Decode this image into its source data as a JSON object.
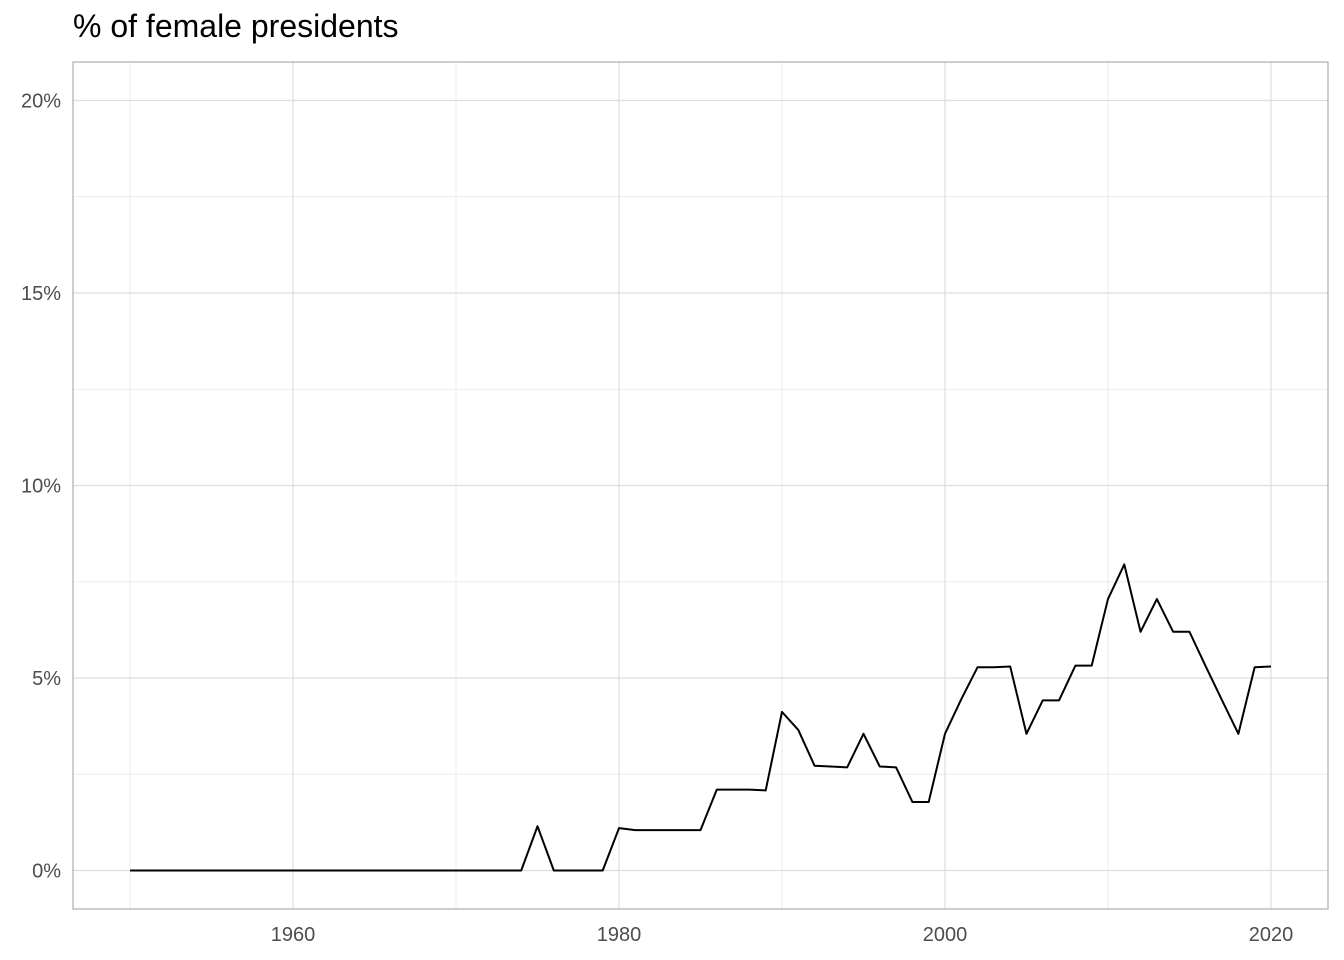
{
  "chart_data": {
    "type": "line",
    "title": "% of female presidents",
    "xlabel": "",
    "ylabel": "",
    "xlim": [
      1946.5,
      2023.5
    ],
    "ylim": [
      -1,
      21
    ],
    "x_ticks": [
      1960,
      1980,
      2000,
      2020
    ],
    "x_tick_labels": [
      "1960",
      "1980",
      "2000",
      "2020"
    ],
    "y_ticks": [
      0,
      5,
      10,
      15,
      20
    ],
    "y_tick_labels": [
      "0%",
      "5%",
      "10%",
      "15%",
      "20%"
    ],
    "grid": true,
    "line_color": "#000000",
    "series": [
      {
        "x": [
          1950,
          1951,
          1952,
          1953,
          1954,
          1955,
          1956,
          1957,
          1958,
          1959,
          1960,
          1961,
          1962,
          1963,
          1964,
          1965,
          1966,
          1967,
          1968,
          1969,
          1970,
          1971,
          1972,
          1973,
          1974,
          1975,
          1976,
          1977,
          1978,
          1979,
          1980,
          1981,
          1982,
          1983,
          1984,
          1985,
          1986,
          1987,
          1988,
          1989,
          1990,
          1991,
          1992,
          1993,
          1994,
          1995,
          1996,
          1997,
          1998,
          1999,
          2000,
          2001,
          2002,
          2003,
          2004,
          2005,
          2006,
          2007,
          2008,
          2009,
          2010,
          2011,
          2012,
          2013,
          2014,
          2015,
          2016,
          2017,
          2018,
          2019,
          2020
        ],
        "y": [
          0,
          0,
          0,
          0,
          0,
          0,
          0,
          0,
          0,
          0,
          0,
          0,
          0,
          0,
          0,
          0,
          0,
          0,
          0,
          0,
          0,
          0,
          0,
          0,
          0,
          1.15,
          0,
          0,
          0,
          0,
          1.1,
          1.05,
          1.05,
          1.05,
          1.05,
          1.05,
          2.1,
          2.1,
          2.1,
          2.08,
          4.12,
          3.65,
          2.72,
          2.7,
          2.68,
          3.55,
          2.7,
          2.68,
          1.78,
          1.78,
          3.55,
          4.45,
          5.28,
          5.28,
          5.3,
          3.55,
          4.42,
          4.42,
          5.32,
          5.32,
          7.05,
          7.95,
          6.2,
          7.05,
          6.2,
          6.2,
          5.3,
          4.42,
          3.55,
          5.28,
          5.3
        ]
      }
    ]
  }
}
